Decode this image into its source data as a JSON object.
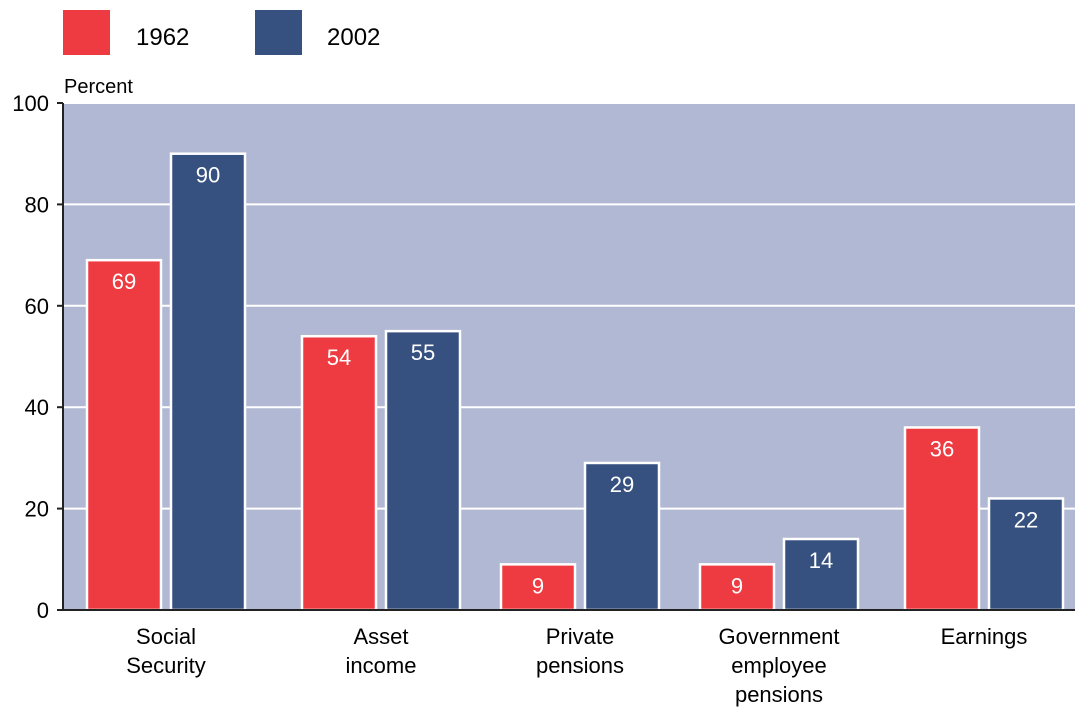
{
  "chart_data": {
    "type": "bar",
    "ylabel": "Percent",
    "ylim": [
      0,
      100
    ],
    "yticks": [
      0,
      20,
      40,
      60,
      80,
      100
    ],
    "grid": true,
    "legend_position": "top-left",
    "categories": [
      [
        "Social",
        "Security"
      ],
      [
        "Asset",
        "income"
      ],
      [
        "Private",
        "pensions"
      ],
      [
        "Government",
        "employee",
        "pensions"
      ],
      [
        "Earnings"
      ]
    ],
    "series": [
      {
        "name": "1962",
        "color": "#ee3b42",
        "values": [
          69,
          54,
          9,
          9,
          36
        ]
      },
      {
        "name": "2002",
        "color": "#36517f",
        "values": [
          90,
          55,
          29,
          14,
          22
        ]
      }
    ],
    "colors": {
      "plot_background": "#b1b8d3",
      "gridline": "#ffffff",
      "axis": "#222222",
      "text": "#000000",
      "data_label": "#ffffff"
    }
  }
}
